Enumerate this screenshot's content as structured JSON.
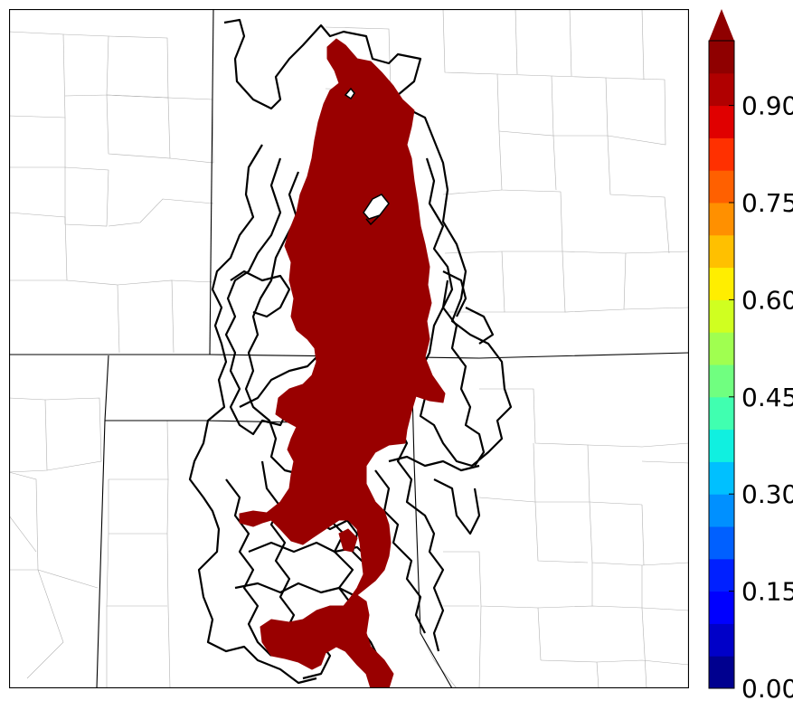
{
  "map": {
    "fill_color": "#990000",
    "contour_color": "#000000",
    "boundary_color": "#000000",
    "county_color": "#b0b0b0"
  },
  "colorbar": {
    "min": 0.0,
    "max": 1.0,
    "step": 0.05,
    "extend": "max",
    "ticks": [
      "0.00",
      "0.15",
      "0.30",
      "0.45",
      "0.60",
      "0.75",
      "0.90"
    ],
    "tick_values": [
      0.0,
      0.15,
      0.3,
      0.45,
      0.6,
      0.75,
      0.9
    ],
    "colors": [
      "#00008f",
      "#0000c8",
      "#0000ff",
      "#0020ff",
      "#0060ff",
      "#0090ff",
      "#00c0ff",
      "#10f0e0",
      "#40ffb0",
      "#70ff80",
      "#a0ff50",
      "#d0ff20",
      "#ffee00",
      "#ffc000",
      "#ff9000",
      "#ff6000",
      "#ff3000",
      "#e00000",
      "#b00000",
      "#8f0000"
    ],
    "extend_color": "#8f0000"
  }
}
